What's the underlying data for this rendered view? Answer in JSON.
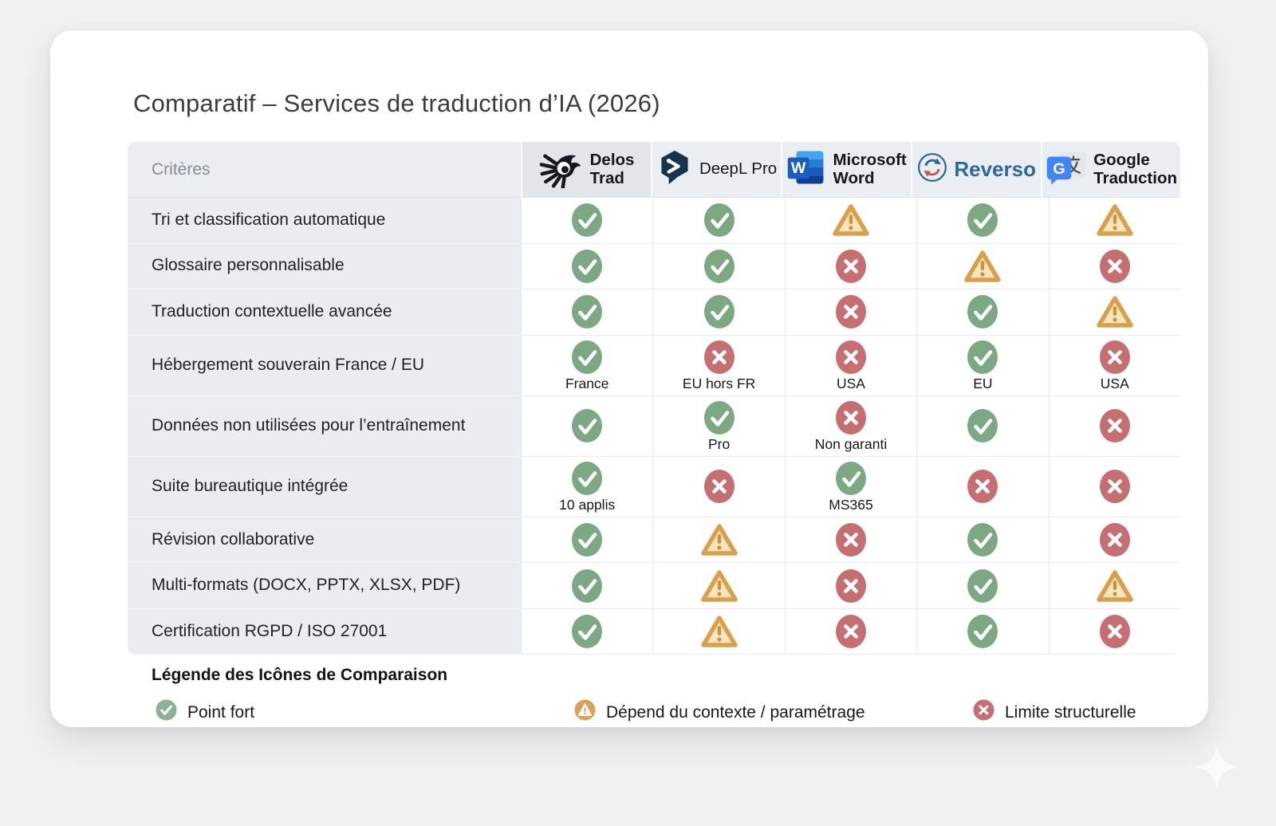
{
  "page": {
    "title": "Comparatif – Services de traduction d’IA (2026)"
  },
  "table": {
    "criteria_header": "Critères",
    "services": [
      {
        "name": "Delos Trad",
        "label": "Delos\nTrad",
        "icon": "delos-trad-logo"
      },
      {
        "name": "DeepL Pro",
        "label": "DeepL Pro",
        "icon": "deepl-logo"
      },
      {
        "name": "Microsoft Word",
        "label": "Microsoft\nWord",
        "icon": "microsoft-word-logo"
      },
      {
        "name": "Reverso",
        "label": "Reverso",
        "icon": "reverso-logo"
      },
      {
        "name": "Google Traduction",
        "label": "Google\nTraduction",
        "icon": "google-translate-logo"
      }
    ],
    "rows": [
      {
        "criterion": "Tri et classification automatique",
        "cells": [
          {
            "status": "check"
          },
          {
            "status": "check"
          },
          {
            "status": "warn"
          },
          {
            "status": "check"
          },
          {
            "status": "warn"
          }
        ]
      },
      {
        "criterion": "Glossaire personnalisable",
        "cells": [
          {
            "status": "check"
          },
          {
            "status": "check"
          },
          {
            "status": "cross"
          },
          {
            "status": "warn"
          },
          {
            "status": "cross"
          }
        ]
      },
      {
        "criterion": "Traduction contextuelle avancée",
        "cells": [
          {
            "status": "check"
          },
          {
            "status": "check"
          },
          {
            "status": "cross"
          },
          {
            "status": "check"
          },
          {
            "status": "warn"
          }
        ]
      },
      {
        "criterion": "Hébergement souverain France / EU",
        "cells": [
          {
            "status": "check",
            "note": "France"
          },
          {
            "status": "cross",
            "note": "EU hors FR"
          },
          {
            "status": "cross",
            "note": "USA"
          },
          {
            "status": "check",
            "note": "EU"
          },
          {
            "status": "cross",
            "note": "USA"
          }
        ]
      },
      {
        "criterion": "Données non utilisées pour l’entraînement",
        "cells": [
          {
            "status": "check"
          },
          {
            "status": "check",
            "note": "Pro"
          },
          {
            "status": "cross",
            "note": "Non garanti"
          },
          {
            "status": "check"
          },
          {
            "status": "cross"
          }
        ]
      },
      {
        "criterion": "Suite bureautique intégrée",
        "cells": [
          {
            "status": "check",
            "note": "10 applis"
          },
          {
            "status": "cross"
          },
          {
            "status": "check",
            "note": "MS365"
          },
          {
            "status": "cross"
          },
          {
            "status": "cross"
          }
        ]
      },
      {
        "criterion": "Révision collaborative",
        "cells": [
          {
            "status": "check"
          },
          {
            "status": "warn"
          },
          {
            "status": "cross"
          },
          {
            "status": "check"
          },
          {
            "status": "cross"
          }
        ]
      },
      {
        "criterion": "Multi-formats (DOCX, PPTX, XLSX, PDF)",
        "cells": [
          {
            "status": "check"
          },
          {
            "status": "warn"
          },
          {
            "status": "cross"
          },
          {
            "status": "check"
          },
          {
            "status": "warn"
          }
        ]
      },
      {
        "criterion": "Certification RGPD / ISO 27001",
        "cells": [
          {
            "status": "check"
          },
          {
            "status": "warn"
          },
          {
            "status": "cross"
          },
          {
            "status": "check"
          },
          {
            "status": "cross"
          }
        ]
      }
    ]
  },
  "legend": {
    "title": "Légende des Icônes de Comparaison",
    "items": [
      {
        "icon": "check-circle-icon",
        "label": "Point fort"
      },
      {
        "icon": "warning-circle-icon",
        "label": "Dépend du contexte / paramétrage"
      },
      {
        "icon": "cross-circle-icon",
        "label": "Limite structurelle"
      }
    ]
  },
  "colors": {
    "status_check": "#7da884",
    "status_cross": "#c66f72",
    "status_warn_border": "#d9a04c",
    "status_warn_fill": "#f6e5c0",
    "reverso_brand": "#2d6b94",
    "header_bg": "#eaedf1",
    "criteria_bg": "#e9ecf0"
  }
}
